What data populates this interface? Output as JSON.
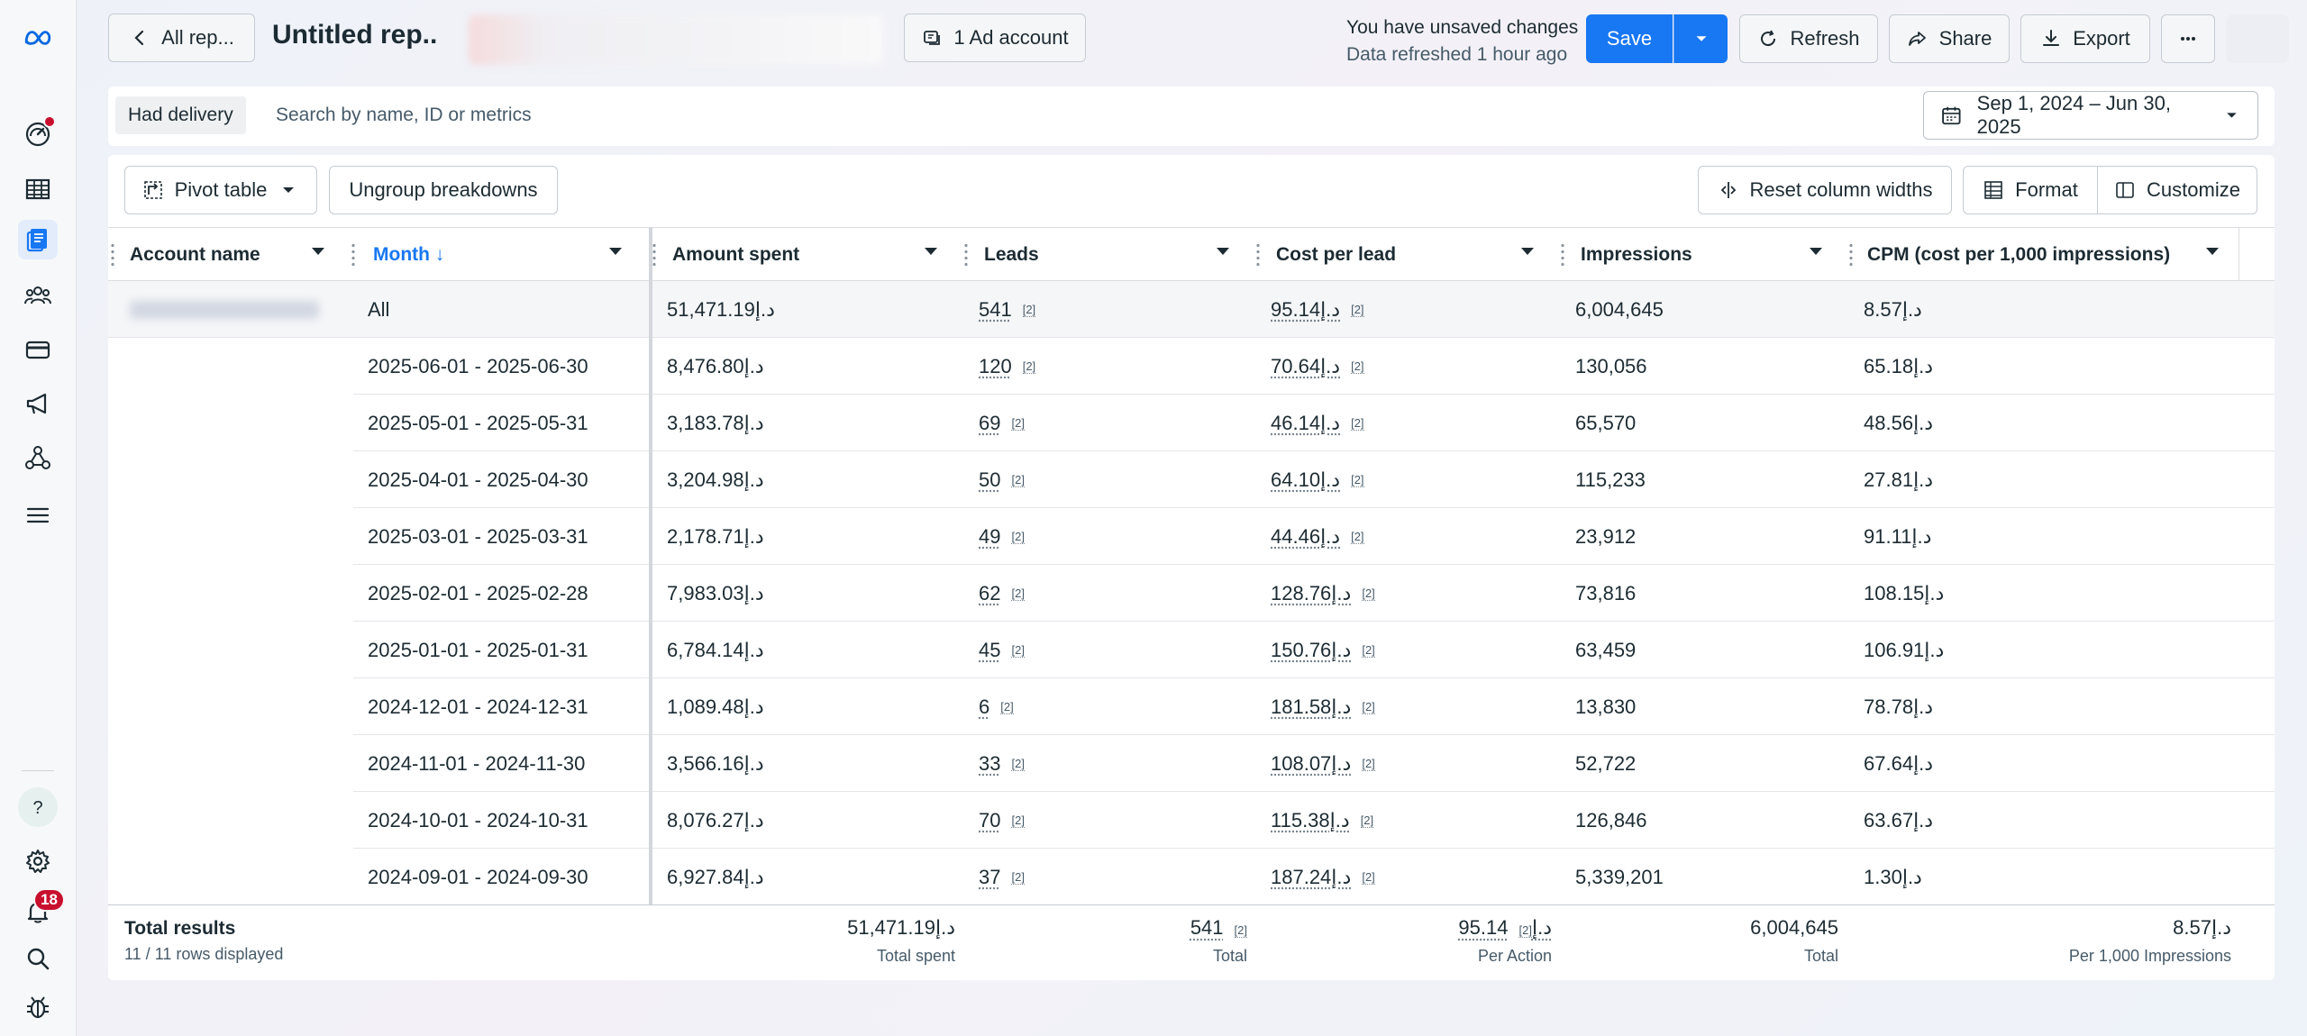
{
  "header": {
    "back_label": "All rep...",
    "title": "Untitled rep..",
    "ad_account_label": "1 Ad account",
    "status_line1": "You have unsaved changes",
    "status_line2": "Data refreshed 1 hour ago",
    "save_label": "Save",
    "refresh_label": "Refresh",
    "share_label": "Share",
    "export_label": "Export"
  },
  "filter": {
    "chip": "Had delivery",
    "search_placeholder": "Search by name, ID or metrics",
    "date_range": "Sep 1, 2024 – Jun 30, 2025"
  },
  "toolbar": {
    "pivot_label": "Pivot table",
    "ungroup_label": "Ungroup breakdowns",
    "reset_label": "Reset column widths",
    "format_label": "Format",
    "customize_label": "Customize"
  },
  "columns": {
    "account": "Account name",
    "month": "Month ↓",
    "spent": "Amount spent",
    "leads": "Leads",
    "cpl": "Cost per lead",
    "impressions": "Impressions",
    "cpm": "CPM (cost per 1,000 impressions)"
  },
  "rows": [
    {
      "month": "All",
      "spent": "51,471.19د.إ",
      "leads": "541",
      "cpl": "95.14د.إ",
      "impressions": "6,004,645",
      "cpm": "8.57د.إ"
    },
    {
      "month": "2025-06-01 - 2025-06-30",
      "spent": "8,476.80د.إ",
      "leads": "120",
      "cpl": "70.64د.إ",
      "impressions": "130,056",
      "cpm": "65.18د.إ"
    },
    {
      "month": "2025-05-01 - 2025-05-31",
      "spent": "3,183.78د.إ",
      "leads": "69",
      "cpl": "46.14د.إ",
      "impressions": "65,570",
      "cpm": "48.56د.إ"
    },
    {
      "month": "2025-04-01 - 2025-04-30",
      "spent": "3,204.98د.إ",
      "leads": "50",
      "cpl": "64.10د.إ",
      "impressions": "115,233",
      "cpm": "27.81د.إ"
    },
    {
      "month": "2025-03-01 - 2025-03-31",
      "spent": "2,178.71د.إ",
      "leads": "49",
      "cpl": "44.46د.إ",
      "impressions": "23,912",
      "cpm": "91.11د.إ"
    },
    {
      "month": "2025-02-01 - 2025-02-28",
      "spent": "7,983.03د.إ",
      "leads": "62",
      "cpl": "128.76د.إ",
      "impressions": "73,816",
      "cpm": "108.15د.إ"
    },
    {
      "month": "2025-01-01 - 2025-01-31",
      "spent": "6,784.14د.إ",
      "leads": "45",
      "cpl": "150.76د.إ",
      "impressions": "63,459",
      "cpm": "106.91د.إ"
    },
    {
      "month": "2024-12-01 - 2024-12-31",
      "spent": "1,089.48د.إ",
      "leads": "6",
      "cpl": "181.58د.إ",
      "impressions": "13,830",
      "cpm": "78.78د.إ"
    },
    {
      "month": "2024-11-01 - 2024-11-30",
      "spent": "3,566.16د.إ",
      "leads": "33",
      "cpl": "108.07د.إ",
      "impressions": "52,722",
      "cpm": "67.64د.إ"
    },
    {
      "month": "2024-10-01 - 2024-10-31",
      "spent": "8,076.27د.إ",
      "leads": "70",
      "cpl": "115.38د.إ",
      "impressions": "126,846",
      "cpm": "63.67د.إ"
    },
    {
      "month": "2024-09-01 - 2024-09-30",
      "spent": "6,927.84د.إ",
      "leads": "37",
      "cpl": "187.24د.إ",
      "impressions": "5,339,201",
      "cpm": "1.30د.إ"
    }
  ],
  "footnote_marker": "[2]",
  "footer": {
    "title": "Total results",
    "rows_displayed": "11 / 11 rows displayed",
    "spent": "51,471.19د.إ",
    "spent_label": "Total spent",
    "leads": "541",
    "leads_label": "Total",
    "cpl": "95.14د.إ",
    "cpl_label": "Per Action",
    "impressions": "6,004,645",
    "impressions_label": "Total",
    "cpm": "8.57د.إ",
    "cpm_label": "Per 1,000 Impressions"
  },
  "nav": {
    "notification_count": "18"
  },
  "colors": {
    "accent": "#1877f2",
    "badge": "#c8102e"
  }
}
